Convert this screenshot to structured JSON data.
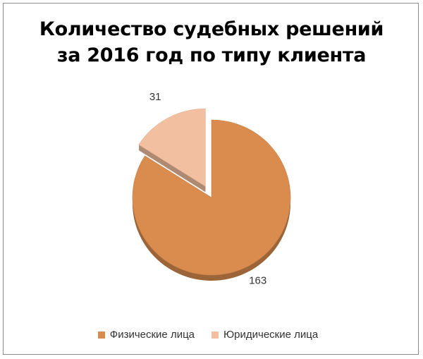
{
  "chart_data": {
    "type": "pie",
    "title": [
      "Количество судебных решений",
      "за 2016 год по типу клиента"
    ],
    "categories": [
      "Физические лица",
      "Юридические лица"
    ],
    "values": [
      163,
      31
    ],
    "data_labels": [
      "163",
      "31"
    ],
    "colors": [
      "#d98c4e",
      "#f2bfa0"
    ],
    "exploded": [
      false,
      true
    ],
    "legend_position": "bottom"
  }
}
